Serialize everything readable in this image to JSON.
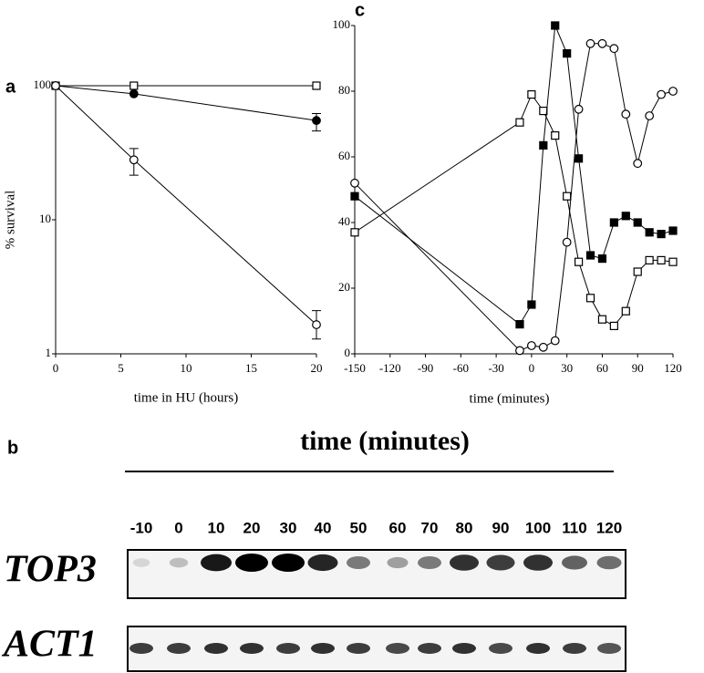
{
  "panel_labels": {
    "a": "a",
    "b": "b",
    "c": "c"
  },
  "chart_data": [
    {
      "type": "line",
      "log_scale_y": true,
      "x": [
        0,
        6,
        20
      ],
      "xlim": [
        0,
        20
      ],
      "xticks": [
        0,
        5,
        10,
        15,
        20
      ],
      "ylim": [
        1,
        100
      ],
      "yticks": [
        1,
        10,
        100
      ],
      "xlabel": "time in HU (hours)",
      "ylabel": "% survival",
      "series": [
        {
          "marker": "open-square",
          "color": "#000",
          "values": [
            100,
            100,
            100
          ]
        },
        {
          "marker": "filled-circle",
          "color": "#000",
          "values": [
            100,
            87,
            55
          ],
          "error_low": [
            null,
            null,
            46
          ],
          "error_high": [
            null,
            null,
            62
          ]
        },
        {
          "marker": "open-circle",
          "color": "#000",
          "values": [
            100,
            28,
            1.65
          ],
          "error_low": [
            null,
            21.5,
            1.29
          ],
          "error_high": [
            null,
            34,
            2.1
          ]
        }
      ]
    },
    {
      "type": "line",
      "log_scale_y": false,
      "x": [
        -150,
        -10,
        0,
        10,
        20,
        30,
        40,
        50,
        60,
        70,
        80,
        90,
        100,
        110,
        120
      ],
      "xlim": [
        -150,
        120
      ],
      "xticks": [
        -150,
        -120,
        -90,
        -60,
        -30,
        0,
        30,
        60,
        90,
        120
      ],
      "ylim": [
        0,
        100
      ],
      "yticks": [
        0,
        20,
        40,
        60,
        80,
        100
      ],
      "xlabel": "time (minutes)",
      "series": [
        {
          "marker": "open-square",
          "color": "#000",
          "values": [
            37,
            70.5,
            79,
            74,
            66.5,
            48,
            28,
            17,
            10.5,
            8.5,
            13,
            25,
            28.5,
            28.5,
            28
          ]
        },
        {
          "marker": "filled-square",
          "color": "#000",
          "values": [
            48,
            9,
            15,
            63.5,
            100,
            91.5,
            59.5,
            30,
            29,
            40,
            42,
            40,
            37,
            36.5,
            37.5
          ]
        },
        {
          "marker": "open-circle",
          "color": "#000",
          "values": [
            52,
            1,
            2.5,
            2,
            4,
            34,
            74.5,
            94.5,
            94.5,
            93,
            73,
            58,
            72.5,
            79,
            80
          ]
        }
      ]
    }
  ],
  "blot": {
    "title": "time (minutes)",
    "lanes": [
      "-10",
      "0",
      "10",
      "20",
      "30",
      "40",
      "50",
      "60",
      "70",
      "80",
      "90",
      "100",
      "110",
      "120"
    ],
    "rows": [
      "TOP3",
      "ACT1"
    ]
  }
}
